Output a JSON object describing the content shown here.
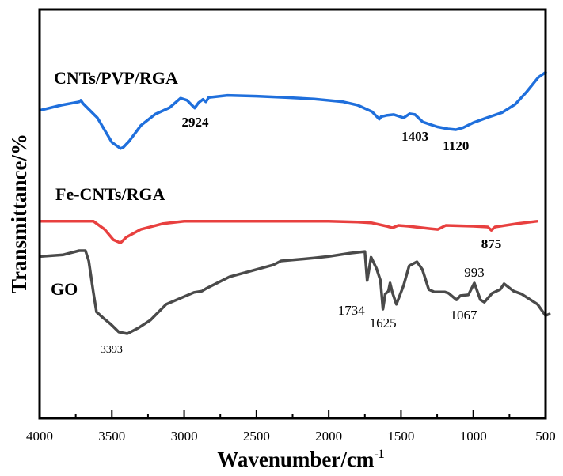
{
  "chart_data": {
    "type": "line",
    "title": "",
    "xlabel": "Wavenumber/cm",
    "xlabel_superscript": "-1",
    "ylabel": "Transmittance/%",
    "xlim": [
      4000,
      500
    ],
    "x_reversed": true,
    "ylim": [
      0,
      100
    ],
    "y_ticks_shown": false,
    "grid": false,
    "legend": "none (inline series labels)",
    "x_ticks": [
      4000,
      3500,
      3000,
      2500,
      2000,
      1500,
      1000,
      500
    ],
    "x_minor_ticks": [
      3750,
      3250,
      2750,
      2250,
      1750,
      1250,
      750
    ],
    "x_tick_labels": [
      "4000",
      "3500",
      "3000",
      "2500",
      "2000",
      "1500",
      "1000",
      "500"
    ],
    "series": [
      {
        "name": "CNTs/PVP/RGA",
        "color": "#1f6fdc",
        "label_text": "CNTs/PVP/RGA",
        "points": [
          [
            3989,
            75.4
          ],
          [
            3850,
            76.6
          ],
          [
            3726,
            77.4
          ],
          [
            3715,
            77.8
          ],
          [
            3700,
            77.0
          ],
          [
            3600,
            73.5
          ],
          [
            3500,
            67.5
          ],
          [
            3440,
            66.0
          ],
          [
            3420,
            66.3
          ],
          [
            3380,
            67.8
          ],
          [
            3300,
            71.6
          ],
          [
            3200,
            74.4
          ],
          [
            3100,
            76.0
          ],
          [
            3025,
            78.3
          ],
          [
            2980,
            77.8
          ],
          [
            2927,
            75.9
          ],
          [
            2900,
            77.2
          ],
          [
            2870,
            78.0
          ],
          [
            2850,
            77.4
          ],
          [
            2830,
            78.5
          ],
          [
            2700,
            79.0
          ],
          [
            2500,
            78.8
          ],
          [
            2300,
            78.5
          ],
          [
            2100,
            78.1
          ],
          [
            1900,
            77.4
          ],
          [
            1800,
            76.6
          ],
          [
            1700,
            75.0
          ],
          [
            1650,
            73.2
          ],
          [
            1637,
            73.8
          ],
          [
            1600,
            74.1
          ],
          [
            1550,
            74.3
          ],
          [
            1482,
            73.5
          ],
          [
            1440,
            74.5
          ],
          [
            1403,
            74.3
          ],
          [
            1350,
            72.5
          ],
          [
            1250,
            71.3
          ],
          [
            1175,
            70.8
          ],
          [
            1120,
            70.6
          ],
          [
            1070,
            71.1
          ],
          [
            1000,
            72.3
          ],
          [
            900,
            73.6
          ],
          [
            800,
            74.8
          ],
          [
            710,
            76.8
          ],
          [
            630,
            79.9
          ],
          [
            550,
            83.4
          ],
          [
            500,
            84.6
          ]
        ],
        "annotations": [
          {
            "text": "2924",
            "x": 2924,
            "style": "bold"
          },
          {
            "text": "1403",
            "x": 1403,
            "style": "bold"
          },
          {
            "text": "1120",
            "x": 1120,
            "style": "bold"
          }
        ]
      },
      {
        "name": "Fe-CNTs/RGA",
        "color": "#e8403f",
        "label_text": "Fe-CNTs/RGA",
        "points": [
          [
            3989,
            48.2
          ],
          [
            3800,
            48.2
          ],
          [
            3627,
            48.2
          ],
          [
            3550,
            46.2
          ],
          [
            3490,
            43.7
          ],
          [
            3441,
            42.9
          ],
          [
            3400,
            44.3
          ],
          [
            3300,
            46.2
          ],
          [
            3150,
            47.6
          ],
          [
            3000,
            48.2
          ],
          [
            2500,
            48.2
          ],
          [
            2000,
            48.2
          ],
          [
            1800,
            48.0
          ],
          [
            1700,
            47.8
          ],
          [
            1600,
            47.0
          ],
          [
            1560,
            46.6
          ],
          [
            1518,
            47.2
          ],
          [
            1450,
            47.0
          ],
          [
            1300,
            46.4
          ],
          [
            1245,
            46.2
          ],
          [
            1190,
            47.2
          ],
          [
            1000,
            47.0
          ],
          [
            900,
            46.8
          ],
          [
            875,
            46.0
          ],
          [
            850,
            46.8
          ],
          [
            700,
            47.6
          ],
          [
            560,
            48.2
          ]
        ],
        "annotations": [
          {
            "text": "875",
            "x": 875,
            "style": "bold"
          }
        ]
      },
      {
        "name": "GO",
        "color": "#4a4a4a",
        "label_text": "GO",
        "points": [
          [
            3989,
            39.6
          ],
          [
            3836,
            40.0
          ],
          [
            3726,
            41.0
          ],
          [
            3683,
            41.0
          ],
          [
            3660,
            38.5
          ],
          [
            3628,
            30.8
          ],
          [
            3606,
            26.0
          ],
          [
            3562,
            24.6
          ],
          [
            3507,
            23.0
          ],
          [
            3452,
            21.1
          ],
          [
            3393,
            20.7
          ],
          [
            3316,
            22.1
          ],
          [
            3233,
            24.0
          ],
          [
            3124,
            27.9
          ],
          [
            2932,
            30.8
          ],
          [
            2877,
            31.1
          ],
          [
            2850,
            31.7
          ],
          [
            2686,
            34.6
          ],
          [
            2385,
            37.5
          ],
          [
            2330,
            38.5
          ],
          [
            2100,
            39.2
          ],
          [
            2000,
            39.6
          ],
          [
            1850,
            40.4
          ],
          [
            1750,
            40.8
          ],
          [
            1707,
            39.4
          ],
          [
            1669,
            36.6
          ],
          [
            1642,
            33.7
          ],
          [
            1734,
            33.7
          ],
          [
            1609,
            30.4
          ],
          [
            1587,
            31.1
          ],
          [
            1576,
            33.1
          ],
          [
            1560,
            30.8
          ],
          [
            1532,
            27.9
          ],
          [
            1625,
            26.7
          ],
          [
            1482,
            32.5
          ],
          [
            1444,
            37.3
          ],
          [
            1390,
            38.3
          ],
          [
            1352,
            36.4
          ],
          [
            1308,
            31.5
          ],
          [
            1270,
            30.9
          ],
          [
            1198,
            30.9
          ],
          [
            1171,
            30.6
          ],
          [
            1116,
            29.0
          ],
          [
            1089,
            30.0
          ],
          [
            1034,
            30.2
          ],
          [
            951,
            29.0
          ],
          [
            924,
            28.4
          ],
          [
            869,
            30.6
          ],
          [
            814,
            31.5
          ],
          [
            787,
            32.9
          ],
          [
            993,
            33.1
          ],
          [
            721,
            31.1
          ],
          [
            666,
            30.4
          ],
          [
            556,
            27.9
          ],
          [
            474,
            25.5
          ],
          [
            500,
            25.1
          ]
        ],
        "annotations": [
          {
            "text": "3393",
            "x": 3393,
            "style": "small"
          },
          {
            "text": "1734",
            "x": 1734,
            "style": "normal"
          },
          {
            "text": "1625",
            "x": 1625,
            "style": "normal"
          },
          {
            "text": "1067",
            "x": 1067,
            "style": "normal"
          },
          {
            "text": "993",
            "x": 993,
            "style": "normal"
          }
        ]
      }
    ]
  }
}
